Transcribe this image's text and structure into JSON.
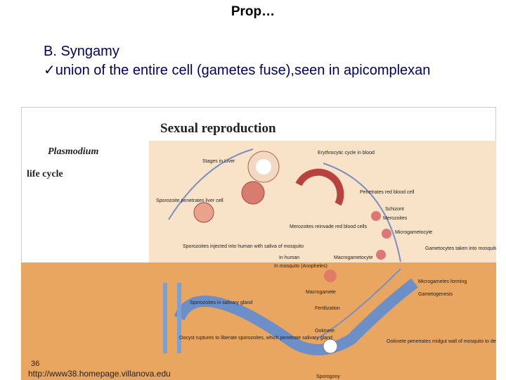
{
  "slide": {
    "title": "Prop…",
    "heading": "B.  Syngamy",
    "bullet_mark": "✓",
    "bullet": "union of the entire cell (gametes fuse),seen in apicomplexan",
    "page_number": "36",
    "source": "http://www38.homepage.villanova.edu"
  },
  "figure": {
    "title": "Sexual reproduction",
    "organism": "Plasmodium",
    "subtitle": "life cycle",
    "labels": [
      "Stages in Liver",
      "Erythrocytic cycle in blood",
      "Sporozoite penetrates liver cell",
      "Penetrates red blood cell",
      "Schizont",
      "Merozoites",
      "Merozoites reinvade red blood cells",
      "Microgametocyte",
      "Sporozoites injected into human with saliva of mosquito",
      "In human",
      "Macrogametocyte",
      "Gametocytes taken into mosquito stomach with blood meal",
      "In mosquito (Anopheles)",
      "Microgametes forming",
      "Sporozoites in salivary gland",
      "Macrogamete",
      "Gametogenesis",
      "Fertilization",
      "Ookinete",
      "Oocyst ruptures to liberate sporozoites, which penetrate salivary gland",
      "Ookinete penetrates midgut wall of mosquito to develop into oocyst",
      "Sporogony"
    ]
  }
}
